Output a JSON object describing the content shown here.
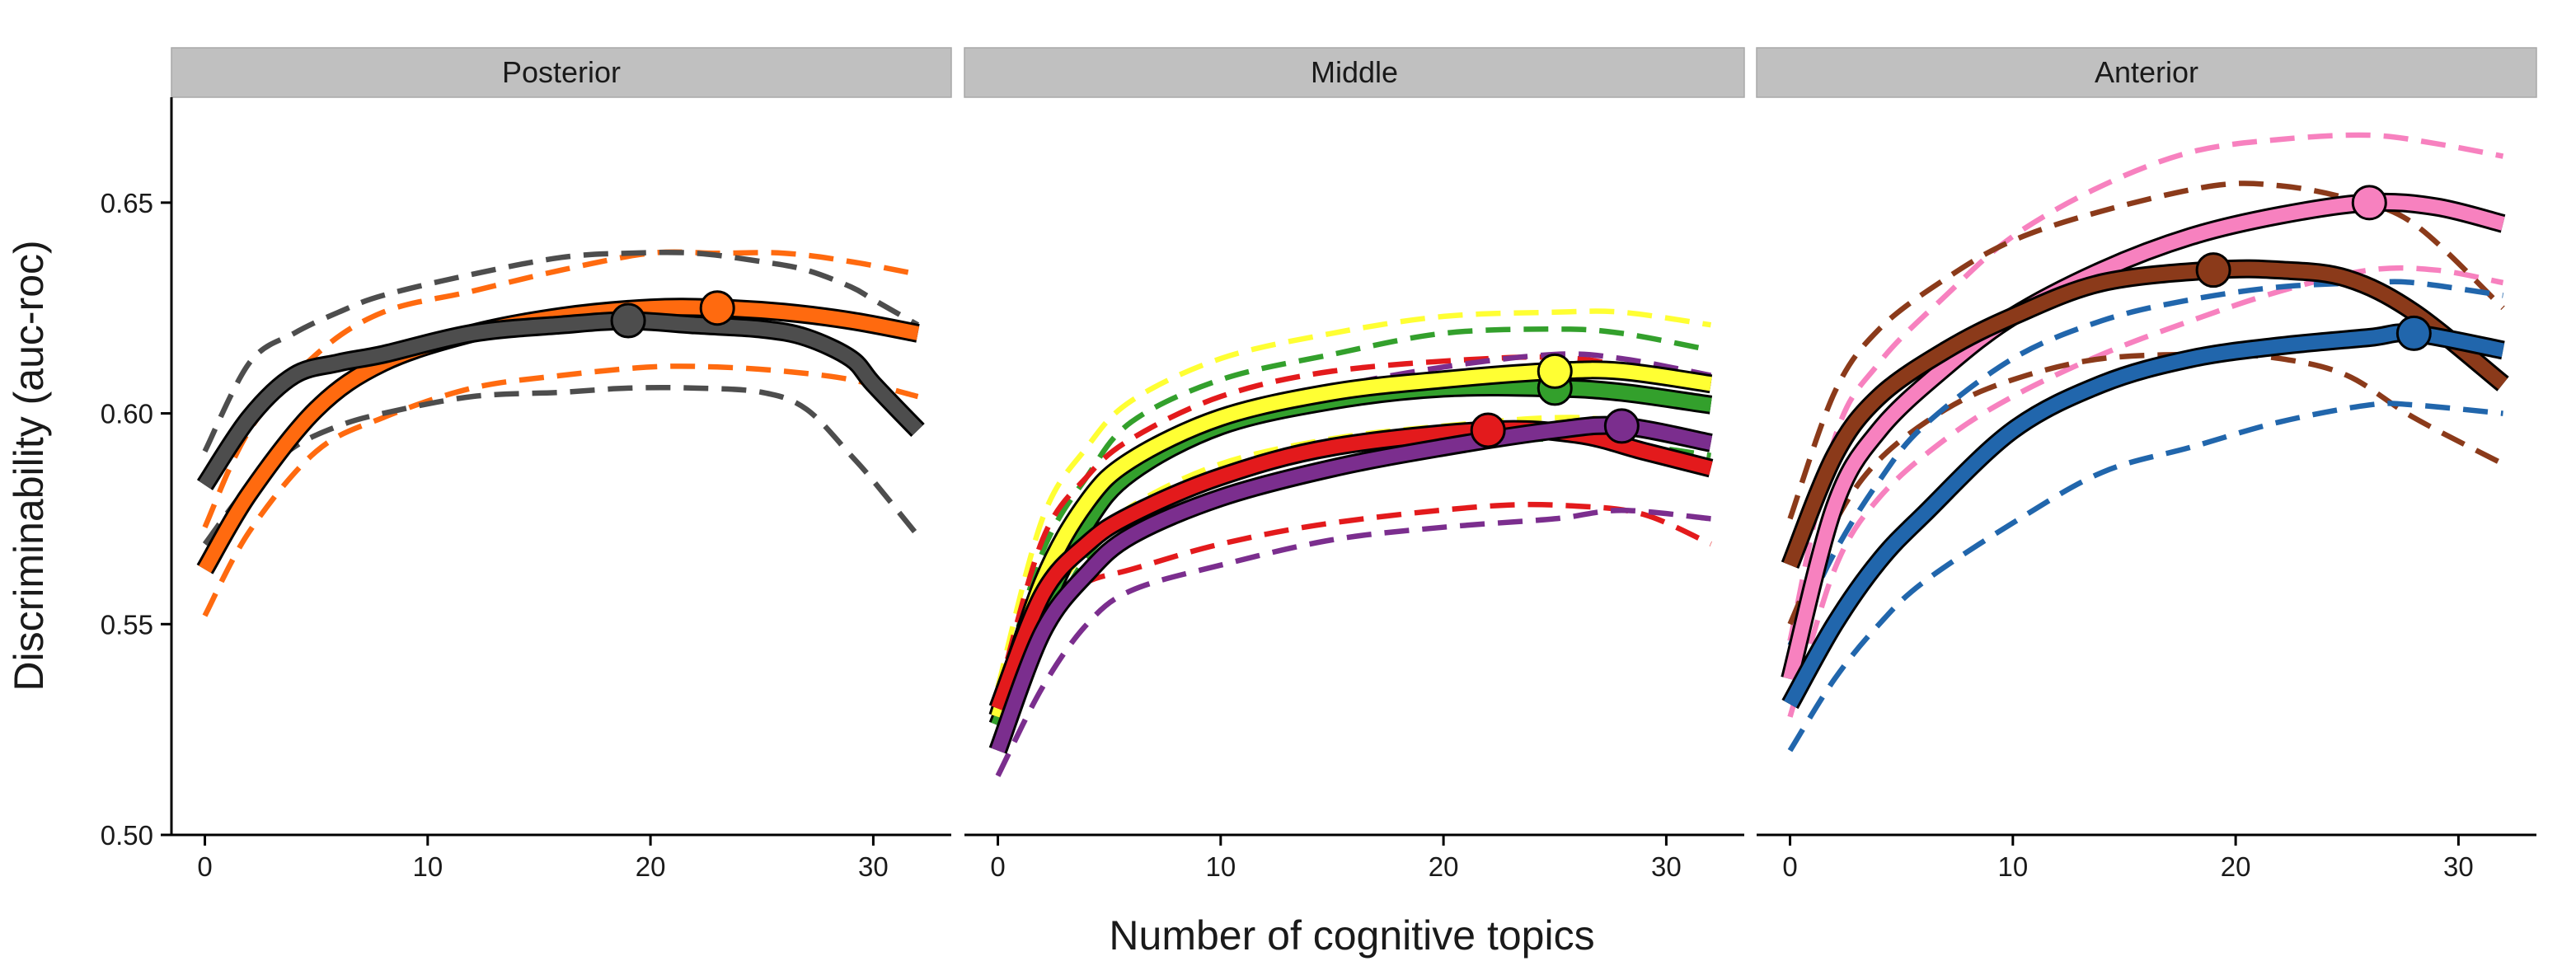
{
  "chart_data": {
    "type": "line",
    "xlabel": "Number of cognitive topics",
    "ylabel": "Discriminability (auc-roc)",
    "xlim": [
      -1.5,
      33.5
    ],
    "ylim": [
      0.5,
      0.675
    ],
    "xticks": [
      0,
      10,
      20,
      30
    ],
    "xtick_labels": [
      "0",
      "10",
      "20",
      "30"
    ],
    "yticks": [
      0.5,
      0.55,
      0.6,
      0.65
    ],
    "ytick_labels": [
      "0.50",
      "0.55",
      "0.60",
      "0.65"
    ],
    "grid": false,
    "legend": "none",
    "panels": [
      {
        "title": "Posterior",
        "series": [
          {
            "name": "orange",
            "color": "#FF6A0F",
            "x": [
              0,
              2,
              5,
              8,
              12,
              16,
              20,
              23,
              26,
              29,
              32
            ],
            "mean": [
              0.563,
              0.581,
              0.601,
              0.612,
              0.619,
              0.623,
              0.625,
              0.625,
              0.624,
              0.622,
              0.619
            ],
            "lower": [
              0.552,
              0.572,
              0.591,
              0.599,
              0.606,
              0.609,
              0.611,
              0.611,
              0.61,
              0.608,
              0.604
            ],
            "upper": [
              0.573,
              0.596,
              0.614,
              0.624,
              0.629,
              0.634,
              0.638,
              0.638,
              0.638,
              0.636,
              0.633
            ],
            "peak": {
              "x": 23,
              "y": 0.625
            }
          },
          {
            "name": "dark-gray",
            "color": "#4D4D4D",
            "x": [
              0,
              2,
              4,
              6,
              8,
              12,
              16,
              19,
              22,
              25,
              27,
              29,
              30,
              32
            ],
            "mean": [
              0.583,
              0.599,
              0.609,
              0.612,
              0.614,
              0.619,
              0.621,
              0.622,
              0.621,
              0.62,
              0.618,
              0.613,
              0.607,
              0.596
            ],
            "lower": [
              0.569,
              0.583,
              0.592,
              0.597,
              0.6,
              0.604,
              0.605,
              0.606,
              0.606,
              0.605,
              0.601,
              0.59,
              0.584,
              0.571
            ],
            "upper": [
              0.591,
              0.612,
              0.619,
              0.624,
              0.628,
              0.633,
              0.637,
              0.638,
              0.638,
              0.636,
              0.634,
              0.63,
              0.627,
              0.621
            ],
            "peak": {
              "x": 19,
              "y": 0.622
            }
          }
        ]
      },
      {
        "title": "Middle",
        "series": [
          {
            "name": "green",
            "color": "#33A02C",
            "x": [
              0,
              2,
              4,
              6,
              10,
              15,
              20,
              25,
              28,
              32
            ],
            "mean": [
              0.526,
              0.553,
              0.574,
              0.586,
              0.597,
              0.603,
              0.606,
              0.606,
              0.605,
              0.602
            ],
            "lower": [
              0.526,
              0.547,
              0.566,
              0.574,
              0.58,
              0.588,
              0.592,
              0.594,
              0.593,
              0.59
            ],
            "upper": [
              0.532,
              0.567,
              0.585,
              0.598,
              0.608,
              0.614,
              0.619,
              0.62,
              0.619,
              0.615
            ],
            "peak": {
              "x": 25,
              "y": 0.606
            }
          },
          {
            "name": "yellow",
            "color": "#FFFF33",
            "x": [
              0,
              2,
              4,
              6,
              10,
              15,
              20,
              25,
              28,
              32
            ],
            "mean": [
              0.528,
              0.56,
              0.579,
              0.589,
              0.599,
              0.605,
              0.608,
              0.61,
              0.61,
              0.607
            ],
            "lower": [
              0.53,
              0.552,
              0.568,
              0.578,
              0.588,
              0.594,
              0.597,
              0.599,
              0.598,
              0.594
            ],
            "upper": [
              0.535,
              0.575,
              0.592,
              0.603,
              0.613,
              0.619,
              0.623,
              0.624,
              0.624,
              0.621
            ],
            "peak": {
              "x": 25,
              "y": 0.61
            }
          },
          {
            "name": "red",
            "color": "#E31A1C",
            "x": [
              0,
              2,
              4,
              6,
              10,
              15,
              22,
              26,
              29,
              32
            ],
            "mean": [
              0.53,
              0.557,
              0.569,
              0.576,
              0.585,
              0.592,
              0.596,
              0.595,
              0.591,
              0.587
            ],
            "lower": [
              0.531,
              0.553,
              0.56,
              0.563,
              0.569,
              0.574,
              0.578,
              0.578,
              0.576,
              0.569
            ],
            "upper": [
              0.533,
              0.57,
              0.585,
              0.594,
              0.604,
              0.61,
              0.613,
              0.613,
              0.61,
              0.607
            ],
            "peak": {
              "x": 22,
              "y": 0.596
            }
          },
          {
            "name": "purple",
            "color": "#7B2E8E",
            "x": [
              0,
              2,
              4,
              6,
              10,
              15,
              20,
              25,
              28,
              32
            ],
            "mean": [
              0.52,
              0.548,
              0.562,
              0.571,
              0.58,
              0.587,
              0.592,
              0.596,
              0.597,
              0.593
            ],
            "lower": [
              0.514,
              0.535,
              0.55,
              0.558,
              0.564,
              0.57,
              0.573,
              0.575,
              0.577,
              0.575
            ],
            "upper": [
              0.527,
              0.56,
              0.576,
              0.587,
              0.598,
              0.606,
              0.611,
              0.614,
              0.613,
              0.609
            ],
            "peak": {
              "x": 28,
              "y": 0.597
            }
          }
        ]
      },
      {
        "title": "Anterior",
        "series": [
          {
            "name": "pink",
            "color": "#F781BF",
            "x": [
              0,
              2,
              4,
              7,
              10,
              14,
              18,
              22,
              26,
              29,
              32
            ],
            "mean": [
              0.537,
              0.578,
              0.596,
              0.611,
              0.623,
              0.634,
              0.642,
              0.647,
              0.65,
              0.649,
              0.645
            ],
            "lower": [
              0.528,
              0.563,
              0.58,
              0.594,
              0.604,
              0.614,
              0.622,
              0.629,
              0.634,
              0.634,
              0.631
            ],
            "upper": [
              0.546,
              0.594,
              0.612,
              0.628,
              0.642,
              0.654,
              0.662,
              0.665,
              0.666,
              0.664,
              0.661
            ],
            "peak": {
              "x": 26,
              "y": 0.65
            }
          },
          {
            "name": "brown",
            "color": "#8B3A1A",
            "x": [
              0,
              2,
              4,
              7,
              10,
              14,
              19,
              22,
              25,
              28,
              32
            ],
            "mean": [
              0.564,
              0.59,
              0.604,
              0.615,
              0.623,
              0.631,
              0.634,
              0.634,
              0.632,
              0.624,
              0.607
            ],
            "lower": [
              0.55,
              0.574,
              0.589,
              0.601,
              0.608,
              0.613,
              0.614,
              0.613,
              0.609,
              0.599,
              0.588
            ],
            "upper": [
              0.575,
              0.605,
              0.62,
              0.632,
              0.641,
              0.648,
              0.654,
              0.654,
              0.651,
              0.645,
              0.625
            ],
            "peak": {
              "x": 19,
              "y": 0.634
            }
          },
          {
            "name": "blue",
            "color": "#2166AC",
            "x": [
              0,
              2,
              4,
              6,
              10,
              14,
              18,
              22,
              26,
              28,
              32
            ],
            "mean": [
              0.531,
              0.55,
              0.565,
              0.576,
              0.596,
              0.607,
              0.613,
              0.616,
              0.618,
              0.619,
              0.615
            ],
            "lower": [
              0.52,
              0.537,
              0.55,
              0.56,
              0.574,
              0.586,
              0.592,
              0.598,
              0.602,
              0.602,
              0.6
            ],
            "upper": [
              0.545,
              0.567,
              0.584,
              0.597,
              0.613,
              0.622,
              0.627,
              0.63,
              0.631,
              0.631,
              0.628
            ],
            "peak": {
              "x": 28,
              "y": 0.619
            }
          }
        ]
      }
    ]
  }
}
